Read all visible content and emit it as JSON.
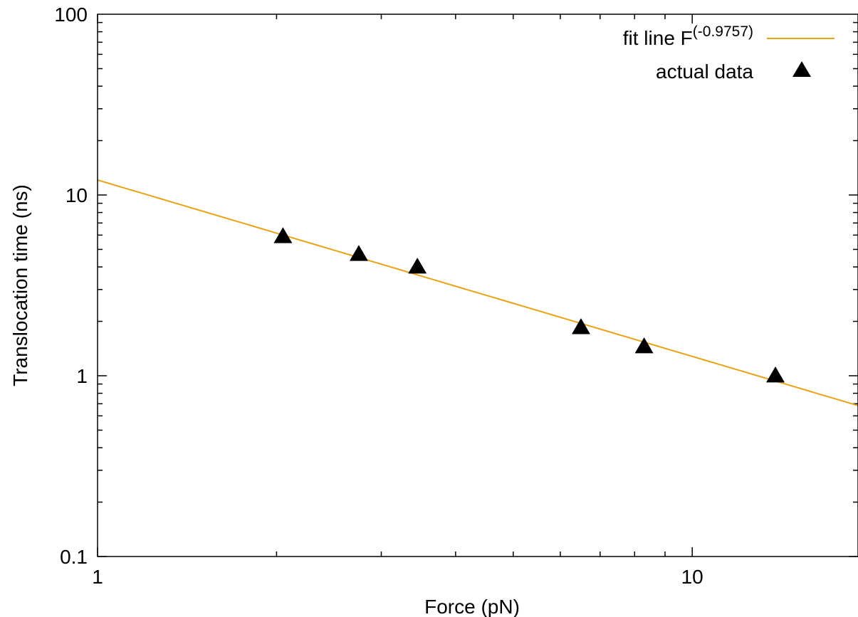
{
  "chart_data": {
    "type": "scatter",
    "x_scale": "log",
    "y_scale": "log",
    "xlabel": "Force (pN)",
    "ylabel": "Translocation time (ns)",
    "xlim": [
      1,
      19
    ],
    "ylim": [
      0.1,
      100
    ],
    "x_ticks": [
      {
        "value": 1,
        "label": "1"
      },
      {
        "value": 10,
        "label": "10"
      }
    ],
    "y_ticks": [
      {
        "value": 0.1,
        "label": "0.1"
      },
      {
        "value": 1,
        "label": "1"
      },
      {
        "value": 10,
        "label": "10"
      },
      {
        "value": 100,
        "label": "100"
      }
    ],
    "grid": false,
    "legend_position": "top-right",
    "series": [
      {
        "name": "fit line F",
        "name_superscript": "(-0.9757)",
        "kind": "line",
        "color": "#e8a317",
        "coefficient": 12.1,
        "exponent": -0.9757
      },
      {
        "name": "actual data",
        "kind": "points",
        "marker": "triangle",
        "color": "#000000",
        "points": [
          {
            "x": 2.05,
            "y": 5.9
          },
          {
            "x": 2.75,
            "y": 4.7
          },
          {
            "x": 3.45,
            "y": 4.0
          },
          {
            "x": 6.5,
            "y": 1.85
          },
          {
            "x": 8.3,
            "y": 1.45
          },
          {
            "x": 13.8,
            "y": 1.0
          }
        ]
      }
    ]
  }
}
